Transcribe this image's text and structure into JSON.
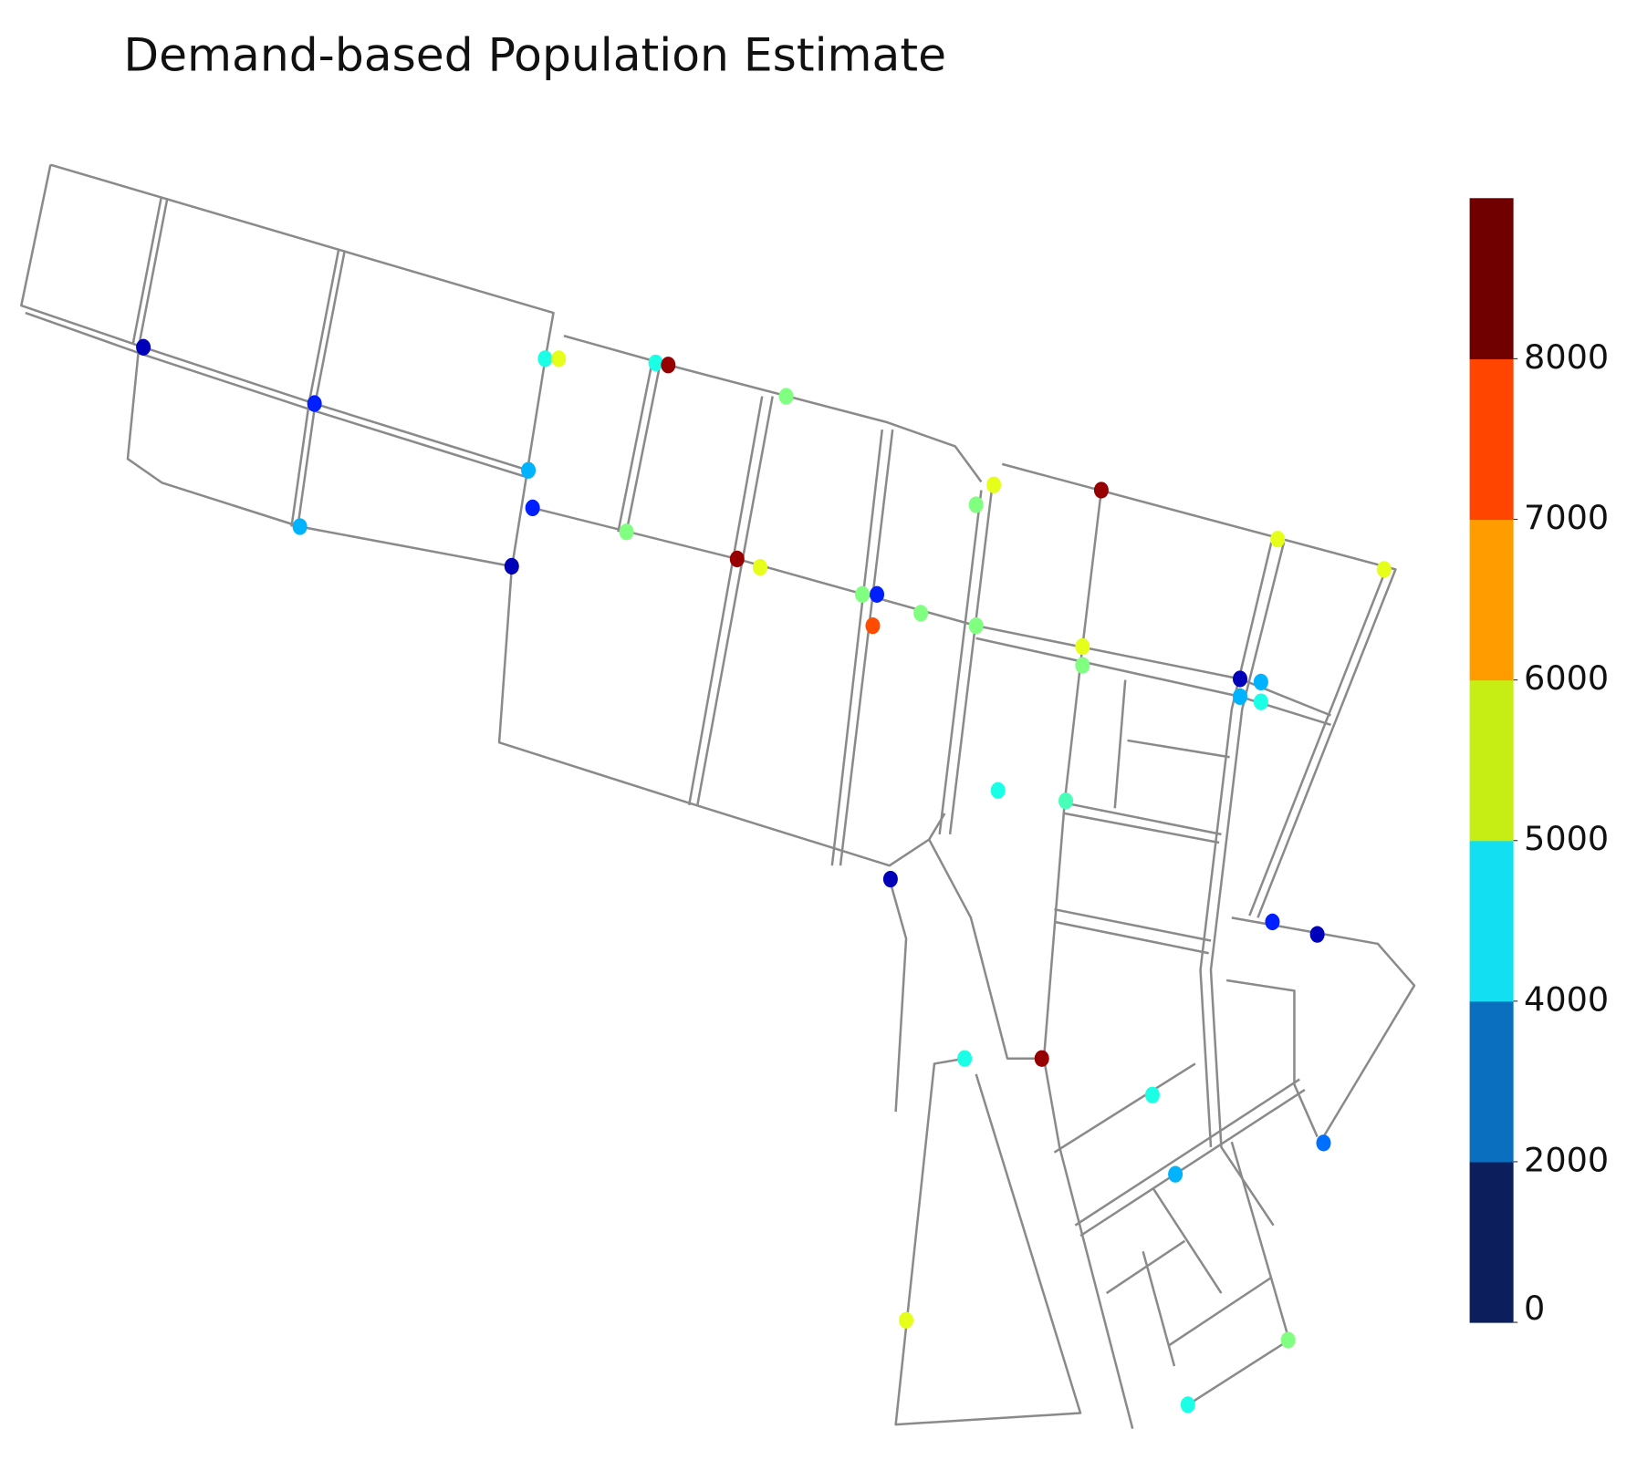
{
  "title": "Demand-based Population Estimate",
  "colorbar": {
    "bounds": [
      0,
      2000,
      4000,
      5000,
      6000,
      7000,
      8000,
      9000
    ],
    "colors": [
      "#0c1f5c",
      "#0a6fbf",
      "#12e0f2",
      "#c6ee14",
      "#ff9c00",
      "#ff4500",
      "#700000"
    ],
    "ticks": [
      0,
      2000,
      4000,
      5000,
      6000,
      7000,
      8000
    ]
  },
  "node_values": [
    500,
    1400,
    2700,
    500,
    1400,
    2700,
    3600,
    5400,
    3600,
    8800,
    4500,
    4500,
    8800,
    5400,
    4500,
    1400,
    7200,
    4500,
    4500,
    5400,
    8800,
    4500,
    5400,
    4500,
    500,
    2700,
    2700,
    3600,
    5400,
    5400,
    3600,
    4000,
    500,
    1400,
    500,
    3600,
    8800,
    3600,
    2700,
    2100,
    5400,
    4500,
    3600
  ]
}
